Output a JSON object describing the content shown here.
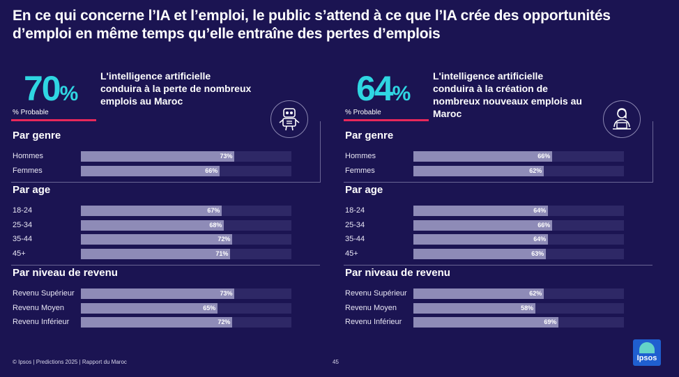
{
  "title": {
    "line1": "En ce qui concerne l’IA et l’emploi, le public s’attend à ce que l’IA crée des opportunités",
    "line2": "d’emploi en même temps qu’elle entraîne des pertes d’emplois"
  },
  "panels": [
    {
      "big_value": "70",
      "big_unit": "%",
      "prob_label": "% Probable",
      "headline": "L'intelligence artificielle conduira à la perte de nombreux emplois au Maroc",
      "icon": "robot-icon"
    },
    {
      "big_value": "64",
      "big_unit": "%",
      "prob_label": "% Probable",
      "headline": "L'intelligence artificielle conduira à la création de nombreux nouveaux emplois au Maroc",
      "icon": "office-worker-icon"
    }
  ],
  "chart_data": [
    {
      "type": "bar",
      "orientation": "horizontal",
      "xlim": [
        0,
        100
      ],
      "groups": [
        {
          "name": "Par genre",
          "categories": [
            "Hommes",
            "Femmes"
          ],
          "values": [
            73,
            66
          ],
          "labels": [
            "73%",
            "66%"
          ]
        },
        {
          "name": "Par age",
          "categories": [
            "18-24",
            "25-34",
            "35-44",
            "45+"
          ],
          "values": [
            67,
            68,
            72,
            71
          ],
          "labels": [
            "67%",
            "68%",
            "72%",
            "71%"
          ]
        },
        {
          "name": "Par niveau de revenu",
          "categories": [
            "Revenu Supérieur",
            "Revenu Moyen",
            "Revenu Inférieur"
          ],
          "values": [
            73,
            65,
            72
          ],
          "labels": [
            "73%",
            "65%",
            "72%"
          ]
        }
      ]
    },
    {
      "type": "bar",
      "orientation": "horizontal",
      "xlim": [
        0,
        100
      ],
      "groups": [
        {
          "name": "Par genre",
          "categories": [
            "Hommes",
            "Femmes"
          ],
          "values": [
            66,
            62
          ],
          "labels": [
            "66%",
            "62%"
          ]
        },
        {
          "name": "Par age",
          "categories": [
            "18-24",
            "25-34",
            "35-44",
            "45+"
          ],
          "values": [
            64,
            66,
            64,
            63
          ],
          "labels": [
            "64%",
            "66%",
            "64%",
            "63%"
          ]
        },
        {
          "name": "Par niveau de revenu",
          "categories": [
            "Revenu Supérieur",
            "Revenu Moyen",
            "Revenu Inférieur"
          ],
          "values": [
            62,
            58,
            69
          ],
          "labels": [
            "62%",
            "58%",
            "69%"
          ]
        }
      ]
    }
  ],
  "colors": {
    "background": "#1b1452",
    "accent_cyan": "#2fd6e2",
    "accent_red": "#e8285a",
    "bar_fill": "#8e8bb7",
    "bar_track": "#2e2866"
  },
  "footer": {
    "credit": "© Ipsos | Predictions 2025 | Rapport du Maroc",
    "page": "45"
  },
  "logo": {
    "text": "Ipsos"
  }
}
